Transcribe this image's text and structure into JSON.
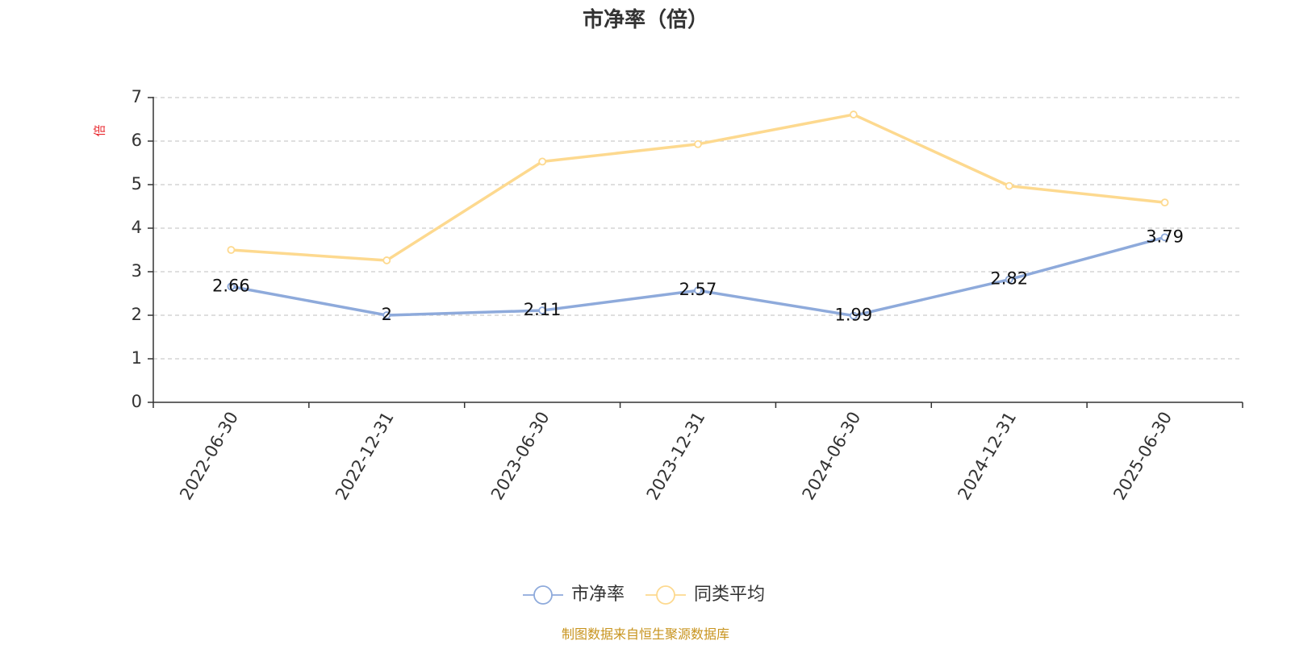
{
  "chart_data": {
    "type": "line",
    "title": "市净率（倍）",
    "ylabel": "倍",
    "categories": [
      "2022-06-30",
      "2022-12-31",
      "2023-06-30",
      "2023-12-31",
      "2024-06-30",
      "2024-12-31",
      "2025-06-30"
    ],
    "ylim": [
      0,
      7
    ],
    "yticks": [
      "0",
      "1",
      "2",
      "3",
      "4",
      "5",
      "6",
      "7"
    ],
    "grid": true,
    "legend_position": "bottom-center",
    "series": [
      {
        "name": "市净率",
        "color": "#8eaadb",
        "values": [
          2.66,
          2,
          2.11,
          2.57,
          1.99,
          2.82,
          3.79
        ],
        "labels": [
          "2.66",
          "2",
          "2.11",
          "2.57",
          "1.99",
          "2.82",
          "3.79"
        ]
      },
      {
        "name": "同类平均",
        "color": "#fdd98f",
        "values": [
          3.5,
          3.26,
          5.53,
          5.93,
          6.61,
          4.97,
          4.59
        ]
      }
    ]
  },
  "source_note": "制图数据来自恒生聚源数据库"
}
